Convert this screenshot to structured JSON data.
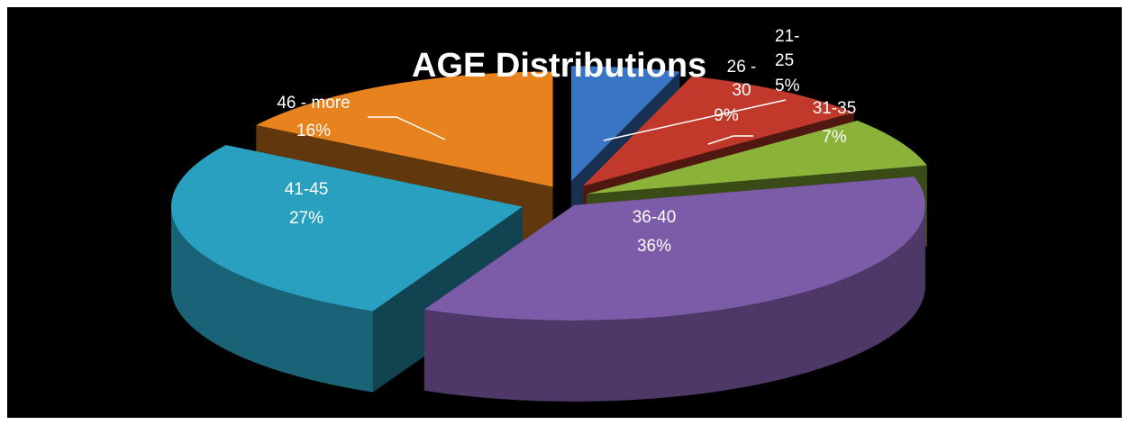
{
  "chart_data": {
    "type": "pie",
    "variant": "3d-exploded",
    "title": "AGE Distributions",
    "legend": "none",
    "categories": [
      "21-25",
      "26 - 30",
      "31-35",
      "36-40",
      "41-45",
      "46 - more"
    ],
    "values": [
      5,
      9,
      7,
      36,
      27,
      16
    ],
    "labels": [
      "5%",
      "9%",
      "7%",
      "36%",
      "27%",
      "16%"
    ],
    "label_lines": [
      [
        "21-",
        "25",
        "5%"
      ],
      [
        "26 -",
        "30",
        "9%"
      ],
      [
        "31-35",
        "7%"
      ],
      [
        "36-40",
        "36%"
      ],
      [
        "41-45",
        "27%"
      ],
      [
        "46 - more",
        "16%"
      ]
    ],
    "colors": [
      "#3a75c4",
      "#c0392b",
      "#8bb33a",
      "#7c5ba8",
      "#2aa0c0",
      "#e8821e"
    ]
  }
}
